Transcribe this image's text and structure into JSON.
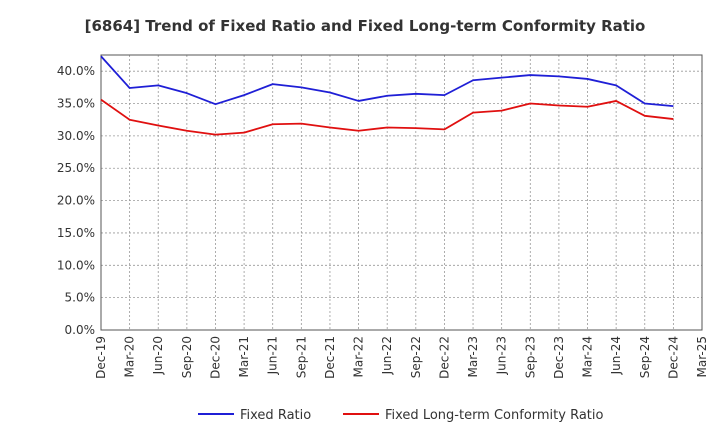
{
  "chart_data": {
    "type": "line",
    "title": "[6864]  Trend of Fixed Ratio and Fixed Long-term Conformity Ratio",
    "xlabel": "",
    "ylabel": "",
    "categories": [
      "Dec-19",
      "Mar-20",
      "Jun-20",
      "Sep-20",
      "Dec-20",
      "Mar-21",
      "Jun-21",
      "Sep-21",
      "Dec-21",
      "Mar-22",
      "Jun-22",
      "Sep-22",
      "Dec-22",
      "Mar-23",
      "Jun-23",
      "Sep-23",
      "Dec-23",
      "Mar-24",
      "Jun-24",
      "Sep-24",
      "Dec-24",
      "Mar-25"
    ],
    "y_ticks": [
      "0.0%",
      "5.0%",
      "10.0%",
      "15.0%",
      "20.0%",
      "25.0%",
      "30.0%",
      "35.0%",
      "40.0%"
    ],
    "ylim": [
      0,
      42.5
    ],
    "grid": true,
    "legend_position": "bottom",
    "series": [
      {
        "name": "Fixed Ratio",
        "color": "#1f1fd6",
        "values": [
          42.3,
          37.4,
          37.8,
          36.6,
          34.9,
          36.3,
          38.0,
          37.5,
          36.7,
          35.4,
          36.2,
          36.5,
          36.3,
          38.6,
          39.0,
          39.4,
          39.2,
          38.8,
          37.8,
          35.0,
          34.6,
          null
        ]
      },
      {
        "name": "Fixed Long-term Conformity Ratio",
        "color": "#e01010",
        "values": [
          35.6,
          32.5,
          31.6,
          30.8,
          30.2,
          30.5,
          31.8,
          31.9,
          31.3,
          30.8,
          31.3,
          31.2,
          31.0,
          33.6,
          33.9,
          35.0,
          34.7,
          34.5,
          35.4,
          33.1,
          32.6,
          null
        ]
      }
    ]
  }
}
